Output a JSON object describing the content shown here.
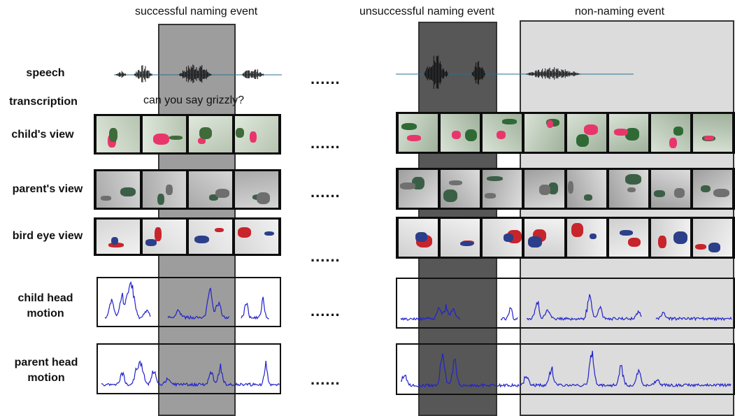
{
  "headers": {
    "successful": "successful naming event",
    "unsuccessful": "unsuccessful naming event",
    "non_naming": "non-naming event"
  },
  "labels": {
    "speech": "speech",
    "transcription": "transcription",
    "child_view": "child's view",
    "parent_view": "parent's view",
    "bird_eye_view": "bird eye view",
    "child_head_motion_1": "child head",
    "child_head_motion_2": "motion",
    "parent_head_motion_1": "parent head",
    "parent_head_motion_2": "motion"
  },
  "transcription_text": "can you say grizzly?",
  "ellipsis": "......",
  "colors": {
    "successful_band": "#8c8c8c",
    "unsuccessful_band": "#3a3a3a",
    "non_naming_band": "#d6d6d6",
    "motion_line": "#2222cc",
    "strip_background": "#0d0d0d"
  },
  "icons": {
    "speech_waveform": "audio-waveform-icon",
    "video_frame": "video-frame-icon",
    "motion_trace": "line-plot-icon"
  }
}
